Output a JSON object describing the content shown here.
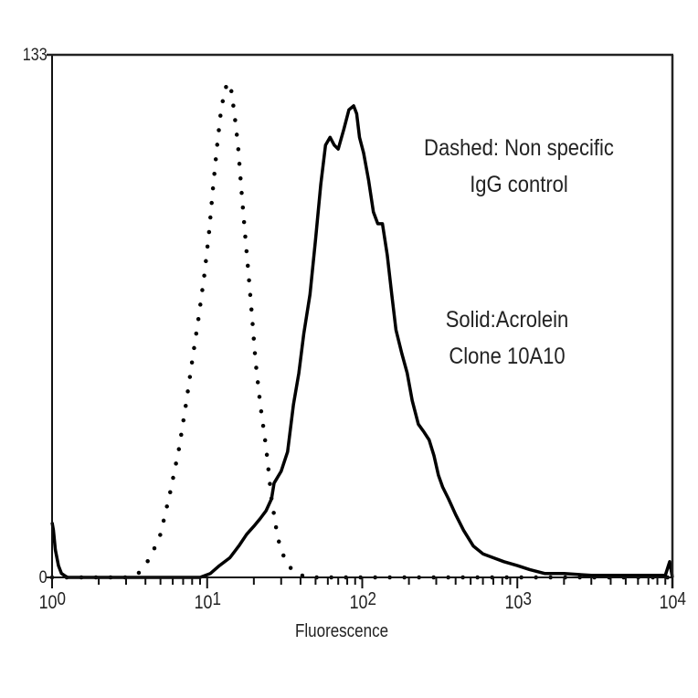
{
  "chart_data": {
    "type": "line",
    "title": "",
    "xlabel": "Fluorescence",
    "ylabel": "",
    "xscale": "log",
    "xlim": [
      1,
      10000
    ],
    "ylim": [
      0,
      133
    ],
    "x_ticks": [
      {
        "base": "10",
        "exp": "0"
      },
      {
        "base": "10",
        "exp": "1"
      },
      {
        "base": "10",
        "exp": "2"
      },
      {
        "base": "10",
        "exp": "3"
      },
      {
        "base": "10",
        "exp": "4"
      }
    ],
    "y_ticks": [
      "0",
      "133"
    ],
    "grid": false,
    "annotations": [
      {
        "lines": [
          "Dashed: Non specific",
          "IgG control"
        ]
      },
      {
        "lines": [
          "Solid:Acrolein",
          "Clone 10A10"
        ]
      }
    ],
    "series": [
      {
        "name": "Non specific IgG control",
        "style": "dotted",
        "x": [
          1,
          3,
          3.6,
          4.3,
          5,
          5.8,
          6.6,
          7.3,
          8,
          8.8,
          9.6,
          10.3,
          10.9,
          11.6,
          12.3,
          13,
          13.6,
          14.3,
          15,
          15.8,
          16.6,
          17.5,
          18.5,
          19.5,
          20.5,
          22,
          24,
          26,
          28.5,
          32,
          37,
          45,
          10000
        ],
        "y": [
          0,
          0,
          1,
          5,
          11,
          22,
          33,
          44,
          55,
          66,
          77,
          88,
          99,
          110,
          119,
          124,
          126,
          124,
          118,
          110,
          99,
          88,
          77,
          66,
          55,
          44,
          33,
          20,
          10,
          4,
          1,
          0,
          0
        ]
      },
      {
        "name": "Acrolein Clone 10A10",
        "style": "solid",
        "x": [
          1,
          1.02,
          1.05,
          1.1,
          1.15,
          1.25,
          9,
          10.5,
          12,
          14,
          16,
          18,
          20,
          22,
          24,
          26,
          27,
          30,
          33,
          36,
          39,
          42,
          46,
          50,
          54,
          58,
          62,
          66,
          70,
          76,
          82,
          88,
          92,
          96,
          102,
          110,
          118,
          126,
          135,
          145,
          155,
          165,
          180,
          195,
          210,
          230,
          250,
          270,
          290,
          310,
          330,
          360,
          400,
          450,
          520,
          600,
          700,
          820,
          1000,
          1200,
          1500,
          2000,
          3000,
          5000,
          9000,
          9600,
          10000
        ],
        "y": [
          14,
          12,
          7,
          3,
          1,
          0,
          0,
          1,
          3,
          5,
          8,
          11,
          13,
          15,
          17,
          20,
          24,
          27,
          32,
          44,
          52,
          62,
          72,
          86,
          100,
          110,
          112,
          110,
          109,
          114,
          119,
          120,
          118,
          112,
          108,
          101,
          93,
          90,
          90,
          82,
          72,
          63,
          57,
          52,
          45,
          39,
          37,
          35,
          31,
          26,
          23,
          20,
          16,
          12,
          8,
          6,
          5,
          4,
          3,
          2,
          1,
          1,
          0.5,
          0.5,
          0.5,
          4,
          0
        ]
      }
    ]
  }
}
